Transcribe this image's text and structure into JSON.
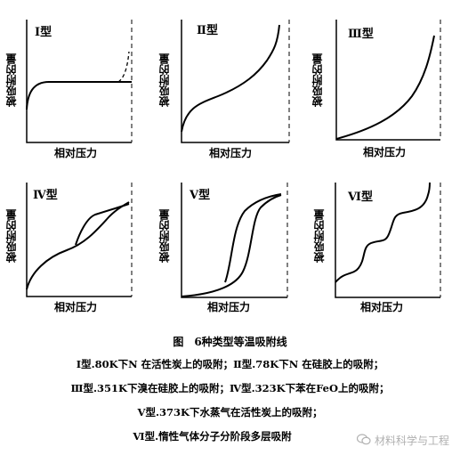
{
  "panels": [
    {
      "type_label": "Ⅰ型",
      "y_label": "被吸附的量",
      "x_label": "相对压力"
    },
    {
      "type_label": "Ⅱ型",
      "y_label": "被吸附的量",
      "x_label": "相对压力"
    },
    {
      "type_label": "Ⅲ型",
      "y_label": "被吸附的量",
      "x_label": "相对压力"
    },
    {
      "type_label": "Ⅳ型",
      "y_label": "被吸附的量",
      "x_label": "相对压力"
    },
    {
      "type_label": "Ⅴ型",
      "y_label": "被吸附的量",
      "x_label": "相对压力"
    },
    {
      "type_label": "Ⅵ型",
      "y_label": "被吸附的量",
      "x_label": "相对压力"
    }
  ],
  "caption": {
    "title": "图　6种类型等温吸附线",
    "lines": [
      "Ⅰ型.80K下N 在活性炭上的吸附；Ⅱ型.78K下N 在硅胶上的吸附；",
      "Ⅲ型.351K下溴在硅胶上的吸附；Ⅳ型.323K下苯在FeO上的吸附；",
      "Ⅴ型.373K下水蒸气在活性炭上的吸附；",
      "Ⅵ型.惰性气体分子分阶段多层吸附"
    ]
  },
  "watermark": "材料科学与工程"
}
